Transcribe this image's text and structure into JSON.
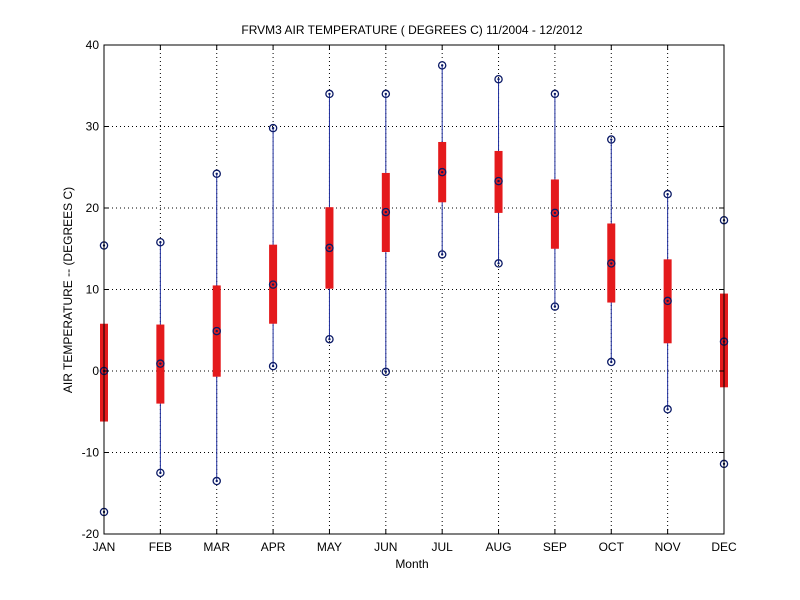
{
  "chart_data": {
    "type": "box",
    "title": "FRVM3  AIR TEMPERATURE ( DEGREES C) 11/2004 - 12/2012",
    "xlabel": "Month",
    "ylabel": "AIR TEMPERATURE -- (DEGREES C)",
    "ylim": [
      -20,
      40
    ],
    "yticks": [
      -20,
      -10,
      0,
      10,
      20,
      30,
      40
    ],
    "grid": true,
    "categories": [
      "JAN",
      "FEB",
      "MAR",
      "APR",
      "MAY",
      "JUN",
      "JUL",
      "AUG",
      "SEP",
      "OCT",
      "NOV",
      "DEC"
    ],
    "series": [
      {
        "min": [
          -17.3,
          -12.5,
          -13.5,
          0.6,
          3.9,
          -0.1,
          14.3,
          13.2,
          7.9,
          1.1,
          -4.7,
          -11.4
        ],
        "q1": [
          -6.2,
          -4.0,
          -0.7,
          5.8,
          10.1,
          14.6,
          20.7,
          19.4,
          15.0,
          8.4,
          3.4,
          -2.0
        ],
        "median": [
          0.0,
          0.9,
          4.9,
          10.6,
          15.1,
          19.5,
          24.4,
          23.3,
          19.4,
          13.2,
          8.6,
          3.6
        ],
        "q3": [
          5.8,
          5.7,
          10.5,
          15.5,
          20.1,
          24.3,
          28.1,
          27.0,
          23.5,
          18.1,
          13.7,
          9.5
        ],
        "max": [
          15.4,
          15.8,
          24.2,
          29.8,
          34.0,
          34.0,
          37.5,
          35.8,
          34.0,
          28.4,
          21.7,
          18.5
        ]
      }
    ],
    "colors": {
      "box": "#e41a1c",
      "whisker": "#1f2f9e",
      "marker": "#0b1a66",
      "grid": "#000000",
      "axis": "#000000"
    }
  }
}
